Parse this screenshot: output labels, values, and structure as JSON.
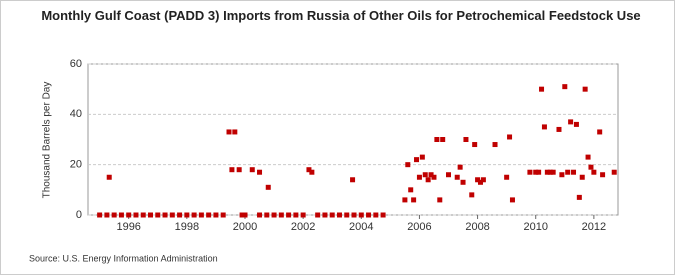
{
  "chart_data": {
    "type": "scatter",
    "title": "Monthly Gulf Coast (PADD 3) Imports from Russia of Other Oils for Petrochemical Feedstock Use",
    "y_label": "Thousand Barrels per Day",
    "source": "Source: U.S. Energy Information Administration",
    "xlim": [
      1994.6,
      2012.83
    ],
    "xticks": [
      1996,
      1998,
      2000,
      2002,
      2004,
      2006,
      2008,
      2010,
      2012
    ],
    "ylim": [
      0,
      60
    ],
    "yticks": [
      0,
      20,
      40,
      60
    ],
    "grid": true,
    "color": "#c00000",
    "x": [
      1995,
      1995.25,
      1995.5,
      1995.75,
      1996,
      1996.25,
      1996.5,
      1996.75,
      1997,
      1997.25,
      1997.5,
      1997.75,
      1998,
      1998.25,
      1998.5,
      1998.75,
      1999,
      1999.25,
      1999.9,
      2000,
      2000.5,
      2000.75,
      2001,
      2001.25,
      2001.5,
      2001.75,
      2002,
      2002.5,
      2002.75,
      2003,
      2003.25,
      2003.5,
      2003.75,
      2004,
      2004.25,
      2004.5,
      2004.75,
      1995.33,
      1999.45,
      1999.55,
      1999.65,
      1999.8,
      2000.25,
      2000.5,
      2000.8,
      2002.2,
      2002.3,
      2003.7,
      2005.5,
      2005.6,
      2005.7,
      2005.8,
      2005.9,
      2006.0,
      2006.1,
      2006.2,
      2006.3,
      2006.4,
      2006.5,
      2006.6,
      2006.7,
      2006.8,
      2007.0,
      2007.3,
      2007.4,
      2007.5,
      2007.6,
      2007.8,
      2007.9,
      2008.0,
      2008.1,
      2008.2,
      2008.6,
      2009.0,
      2009.1,
      2009.2,
      2009.8,
      2010.0,
      2010.1,
      2010.2,
      2010.3,
      2010.4,
      2010.5,
      2010.6,
      2010.8,
      2010.9,
      2011.0,
      2011.1,
      2011.2,
      2011.3,
      2011.4,
      2011.5,
      2011.6,
      2011.7,
      2011.8,
      2011.9,
      2012.0,
      2012.2,
      2012.3,
      2012.7
    ],
    "values": [
      0,
      0,
      0,
      0,
      0,
      0,
      0,
      0,
      0,
      0,
      0,
      0,
      0,
      0,
      0,
      0,
      0,
      0,
      0,
      0,
      0,
      0,
      0,
      0,
      0,
      0,
      0,
      0,
      0,
      0,
      0,
      0,
      0,
      0,
      0,
      0,
      0,
      15,
      33,
      18,
      33,
      18,
      18,
      17,
      11,
      18,
      17,
      14,
      6,
      20,
      10,
      6,
      22,
      15,
      23,
      16,
      14,
      16,
      15,
      30,
      6,
      30,
      16,
      15,
      19,
      13,
      30,
      8,
      28,
      14,
      13,
      14,
      28,
      15,
      31,
      6,
      17,
      17,
      17,
      50,
      35,
      17,
      17,
      17,
      34,
      16,
      51,
      17,
      37,
      17,
      36,
      7,
      15,
      50,
      23,
      19,
      17,
      33,
      16,
      17
    ]
  }
}
